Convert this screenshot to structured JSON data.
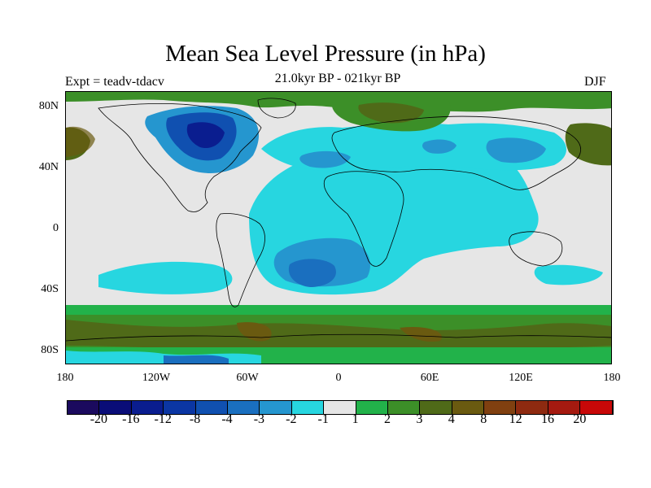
{
  "title": "Mean Sea Level Pressure (in hPa)",
  "subtitle": "21.0kyr BP - 021kyr BP",
  "experiment": "Expt = teadv-tdacv",
  "season": "DJF",
  "lat_labels": [
    "80N",
    "40N",
    "0",
    "40S",
    "80S"
  ],
  "lon_labels": [
    "180",
    "120W",
    "60W",
    "0",
    "60E",
    "120E",
    "180"
  ],
  "colorbar": {
    "colors": [
      "#1b0a5e",
      "#0a0d78",
      "#0a1d8f",
      "#0b36a3",
      "#1050b0",
      "#1a6fbf",
      "#2596cf",
      "#27d6e0",
      "#e6e6e6",
      "#22b24a",
      "#3c8f28",
      "#4f6a18",
      "#6a5a10",
      "#804010",
      "#8e2a10",
      "#a51a10",
      "#c80808"
    ],
    "labels": [
      "-20",
      "-16",
      "-12",
      "-8",
      "-4",
      "-3",
      "-2",
      "-1",
      "1",
      "2",
      "3",
      "4",
      "8",
      "12",
      "16",
      "20"
    ]
  }
}
